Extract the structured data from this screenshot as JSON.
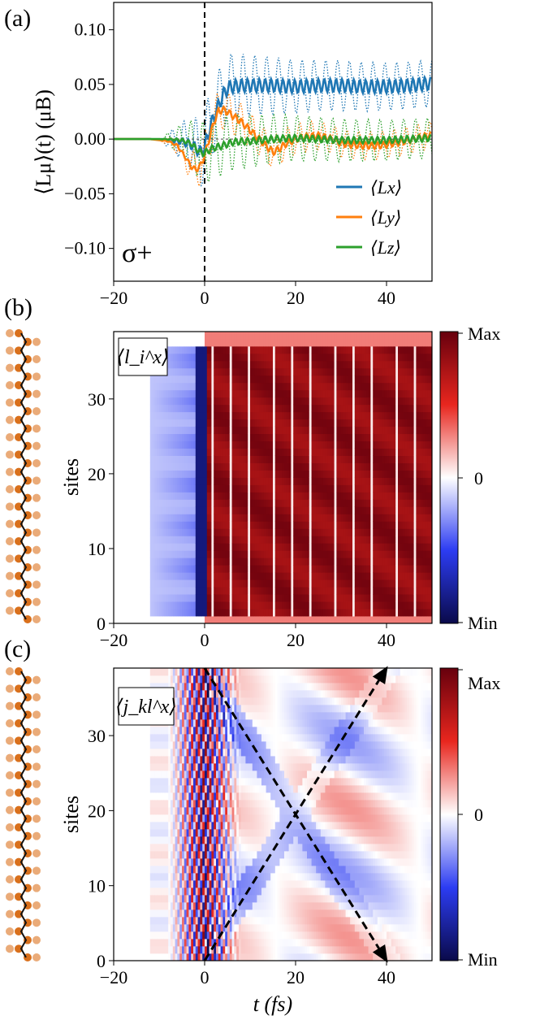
{
  "chart_data": [
    {
      "type": "line",
      "panel_label": "(a)",
      "ylabel": "⟨Lμ⟩(t) (μB)",
      "xlim": [
        -20,
        50
      ],
      "ylim": [
        -0.13,
        0.125
      ],
      "xticks": [
        "−20",
        "0",
        "20",
        "40"
      ],
      "xtick_values": [
        -20,
        0,
        20,
        40
      ],
      "yticks": [
        "0.10",
        "0.05",
        "0.00",
        "−0.05",
        "−0.10"
      ],
      "ytick_values": [
        0.1,
        0.05,
        0.0,
        -0.05,
        -0.1
      ],
      "annotation": "σ+",
      "vline_x": 0,
      "series": [
        {
          "name": "⟨Lx⟩",
          "color": "#1f77b4",
          "x": [
            -20,
            -12,
            -8,
            -5,
            -3,
            -2,
            -1,
            0,
            1,
            2,
            3,
            4,
            5,
            6,
            8,
            10,
            15,
            20,
            25,
            30,
            35,
            40,
            45,
            50
          ],
          "values": [
            0,
            0,
            -0.001,
            -0.002,
            -0.005,
            -0.008,
            -0.012,
            -0.008,
            0.008,
            0.02,
            0.03,
            0.04,
            0.046,
            0.048,
            0.049,
            0.049,
            0.049,
            0.048,
            0.049,
            0.049,
            0.048,
            0.048,
            0.049,
            0.051
          ],
          "envelope": 0.006,
          "dotted_envelope": 0.035
        },
        {
          "name": "⟨Ly⟩",
          "color": "#ff7f0e",
          "x": [
            -20,
            -12,
            -8,
            -6,
            -4,
            -3,
            -2,
            -1,
            0,
            1,
            2,
            3,
            4,
            5,
            6,
            8,
            10,
            12,
            14,
            15,
            16,
            18,
            20,
            22,
            25,
            28,
            30,
            32,
            35,
            38,
            40,
            45,
            50
          ],
          "values": [
            0,
            0,
            -0.002,
            -0.006,
            -0.018,
            -0.025,
            -0.028,
            -0.025,
            -0.015,
            0.0,
            0.015,
            0.025,
            0.027,
            0.025,
            0.022,
            0.016,
            0.008,
            0.0,
            -0.008,
            -0.012,
            -0.01,
            -0.004,
            0.0,
            0.002,
            0.003,
            0.0,
            -0.004,
            -0.005,
            -0.006,
            -0.006,
            -0.005,
            -0.001,
            0.004
          ],
          "envelope": 0.003,
          "dotted_envelope": 0.02
        },
        {
          "name": "⟨Lz⟩",
          "color": "#2ca02c",
          "x": [
            -20,
            -12,
            -8,
            -5,
            -3,
            -2,
            -1,
            0,
            1,
            2,
            4,
            6,
            8,
            10,
            12,
            15,
            20,
            25,
            30,
            35,
            40,
            45,
            50
          ],
          "values": [
            0,
            0,
            0,
            -0.001,
            -0.004,
            -0.008,
            -0.012,
            -0.013,
            -0.01,
            -0.008,
            -0.006,
            -0.003,
            -0.002,
            -0.002,
            -0.001,
            0.0,
            0.001,
            0.0,
            -0.001,
            -0.001,
            -0.001,
            0.0,
            0.001
          ],
          "envelope": 0.003,
          "dotted_envelope": 0.03
        }
      ]
    },
    {
      "type": "heatmap",
      "panel_label": "(b)",
      "inset_label": "⟨l_i^x⟩",
      "xlabel": "",
      "ylabel": "sites",
      "xlim": [
        -20,
        50
      ],
      "ylim": [
        0,
        39
      ],
      "xticks": [
        "−20",
        "0",
        "20",
        "40"
      ],
      "xtick_values": [
        -20,
        0,
        20,
        40
      ],
      "yticks": [
        "0",
        "10",
        "20",
        "30"
      ],
      "ytick_values": [
        0,
        10,
        20,
        30
      ],
      "colorbar_labels": [
        "Max",
        "0",
        "Min"
      ]
    },
    {
      "type": "heatmap",
      "panel_label": "(c)",
      "inset_label": "⟨j_kl^x⟩",
      "xlabel": "t (fs)",
      "ylabel": "sites",
      "xlim": [
        -20,
        50
      ],
      "ylim": [
        0,
        39
      ],
      "xticks": [
        "−20",
        "0",
        "20",
        "40"
      ],
      "xtick_values": [
        -20,
        0,
        20,
        40
      ],
      "yticks": [
        "0",
        "10",
        "20",
        "30"
      ],
      "ytick_values": [
        0,
        10,
        20,
        30
      ],
      "colorbar_labels": [
        "Max",
        "0",
        "Min"
      ],
      "arrows": [
        {
          "from": [
            0,
            39
          ],
          "to": [
            40,
            0
          ]
        },
        {
          "from": [
            0,
            0
          ],
          "to": [
            40,
            39
          ]
        }
      ]
    }
  ]
}
